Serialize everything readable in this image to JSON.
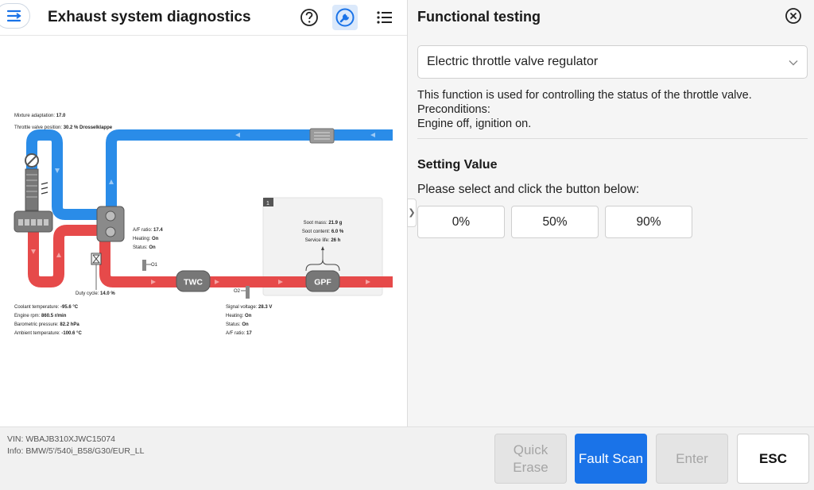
{
  "header": {
    "title": "Exhaust system diagnostics",
    "icons": [
      "menu-icon",
      "help-icon",
      "wrench-icon",
      "list-icon"
    ]
  },
  "diagram": {
    "labels_top": {
      "mixture": "Mixture adaptation:",
      "mixture_val": "17.0",
      "throttle": "Throttle valve position:",
      "throttle_val": "30.2 % Drosselklappe"
    },
    "sensor1": {
      "af_label": "A/F ratio:",
      "af_val": "17.4",
      "heating_label": "Heating:",
      "heating_val": "On",
      "status_label": "Status:",
      "status_val": "On",
      "id": "O1"
    },
    "duty": {
      "label": "Duty cycle:",
      "val": "14.0 %"
    },
    "engine": [
      {
        "label": "Coolant temperature:",
        "val": "-95.6 °C"
      },
      {
        "label": "Engine rpm:",
        "val": "860.5 r/min"
      },
      {
        "label": "Barometric pressure:",
        "val": "82.2 hPa"
      },
      {
        "label": "Ambient temperature:",
        "val": "-100.6 °C"
      }
    ],
    "sensor2": {
      "id": "O2",
      "rows": [
        {
          "label": "Signal voltage:",
          "val": "28.3 V"
        },
        {
          "label": "Heating:",
          "val": "On"
        },
        {
          "label": "Status:",
          "val": "On"
        },
        {
          "label": "A/F ratio:",
          "val": "17"
        }
      ]
    },
    "gpf_box": {
      "badge": "1",
      "rows": [
        {
          "label": "Soot mass:",
          "val": "21.9 g"
        },
        {
          "label": "Soot content:",
          "val": "6.0 %"
        },
        {
          "label": "Service life:",
          "val": "26 h"
        }
      ]
    },
    "twc": "TWC",
    "gpf": "GPF"
  },
  "vehicle": {
    "vin": "VIN: WBAJB310XJWC15074",
    "info": "Info: BMW/5'/540i_B58/G30/EUR_LL"
  },
  "panel": {
    "title": "Functional testing",
    "select_value": "Electric throttle valve regulator",
    "desc1": "This function is used for controlling the status of the throttle valve.",
    "desc2": "Preconditions:",
    "desc3": "Engine off, ignition on.",
    "setting_title": "Setting Value",
    "instruction": "Please select and click the button below:",
    "values": [
      "0%",
      "50%",
      "90%"
    ],
    "handle_glyph": "❯"
  },
  "actions": {
    "quick_erase_1": "Quick",
    "quick_erase_2": "Erase",
    "fault_scan": "Fault Scan",
    "enter": "Enter",
    "esc": "ESC"
  },
  "colors": {
    "accent": "#1a73e8",
    "intake": "#2a8ce8",
    "exhaust": "#e64a4a"
  }
}
